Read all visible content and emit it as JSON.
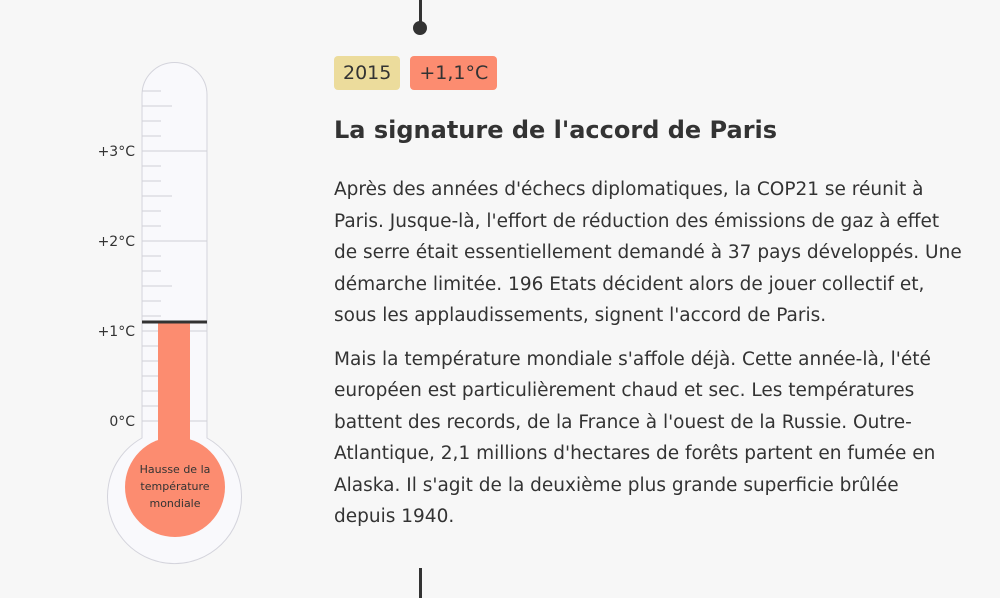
{
  "thermometer": {
    "labels": [
      "+3°C",
      "+2°C",
      "+1°C",
      "0°C"
    ],
    "bulb_label": [
      "Hausse de la",
      "température",
      "mondiale"
    ],
    "value_celsius": 1.1,
    "max_celsius": 3.6,
    "fill_color": "#fc8c70"
  },
  "badges": {
    "year": "2015",
    "temperature": "+1,1°C"
  },
  "title": "La signature de l'accord de Paris",
  "paragraphs": [
    "Après des années d'échecs diplomatiques, la COP21 se réunit à Paris. Jusque-là, l'effort de réduction des émissions de gaz à effet de serre était essentiellement demandé à 37 pays développés. Une démarche limitée. 196 Etats décident alors de jouer collectif et, sous les applaudissements, signent l'accord de Paris.",
    "Mais la température mondiale s'affole déjà. Cette année-là, l'été européen est particulièrement chaud et sec. Les températures battent des records, de la France à l'ouest de la Russie. Outre-Atlantique, 2,1 millions d'hectares de forêts partent en fumée en Alaska. Il s'agit de la deuxième plus grande superficie brûlée depuis 1940."
  ]
}
